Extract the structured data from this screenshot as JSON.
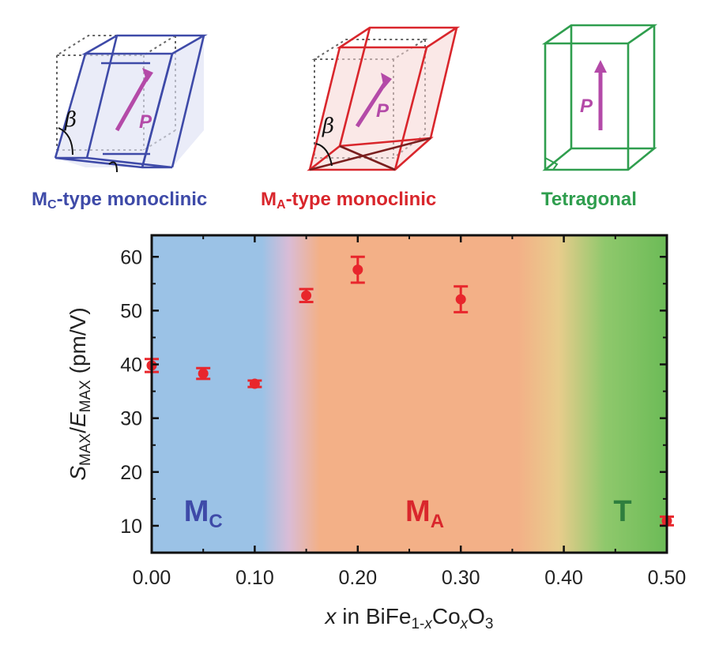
{
  "unit_cells": [
    {
      "key": "mc",
      "main": "M",
      "sub": "C",
      "rest": "-type monoclinic",
      "color": "#3e4aa8",
      "polarization": "P",
      "angle": "β"
    },
    {
      "key": "ma",
      "main": "M",
      "sub": "A",
      "rest": "-type monoclinic",
      "color": "#d9262c",
      "polarization": "P",
      "angle": "β"
    },
    {
      "key": "t",
      "main": "Tetragonal",
      "sub": "",
      "rest": "",
      "color": "#2f9e4e",
      "polarization": "P"
    }
  ],
  "chart_data": {
    "type": "scatter",
    "xlabel": {
      "var": "x",
      "mid": " in BiFe",
      "sub1": "1-",
      "sub1var": "x",
      "mid2": "Co",
      "sub2var": "x",
      "end": "O",
      "sub3": "3"
    },
    "ylabel": {
      "s": "S",
      "s_sub": "MAX",
      "slash": "/",
      "e": "E",
      "e_sub": "MAX",
      "unit": " (pm/V)"
    },
    "xlim": [
      0.0,
      0.5
    ],
    "ylim": [
      5,
      64
    ],
    "xticks": [
      0.0,
      0.1,
      0.2,
      0.3,
      0.4,
      0.5
    ],
    "xtick_labels": [
      "0.00",
      "0.10",
      "0.20",
      "0.30",
      "0.40",
      "0.50"
    ],
    "yticks": [
      10,
      20,
      30,
      40,
      50,
      60
    ],
    "ytick_labels": [
      "10",
      "20",
      "30",
      "40",
      "50",
      "60"
    ],
    "series": [
      {
        "name": "SMAX/EMAX",
        "color": "#e8262c",
        "x": [
          0.0,
          0.05,
          0.1,
          0.15,
          0.2,
          0.3,
          0.5
        ],
        "y": [
          39.8,
          38.3,
          36.4,
          52.8,
          57.6,
          52.1,
          10.9
        ],
        "err": [
          1.2,
          1.0,
          0.6,
          1.2,
          2.4,
          2.4,
          0.8
        ]
      }
    ],
    "regions": [
      {
        "main": "M",
        "sub": "C",
        "x": 0.05,
        "y": 10,
        "color": "#3e4aa8"
      },
      {
        "main": "M",
        "sub": "A",
        "x": 0.265,
        "y": 10,
        "color": "#d9262c"
      },
      {
        "main": "T",
        "sub": "",
        "x": 0.457,
        "y": 10,
        "color": "#2f7e3e"
      }
    ],
    "background": [
      {
        "x": 0.0,
        "color": "#9bc2e6"
      },
      {
        "x": 0.107,
        "color": "#9bc2e6"
      },
      {
        "x": 0.133,
        "color": "#d9bcd6"
      },
      {
        "x": 0.163,
        "color": "#f3b087"
      },
      {
        "x": 0.355,
        "color": "#f3b087"
      },
      {
        "x": 0.395,
        "color": "#e8cc8c"
      },
      {
        "x": 0.44,
        "color": "#8fc86c"
      },
      {
        "x": 0.5,
        "color": "#6cbb57"
      }
    ]
  }
}
